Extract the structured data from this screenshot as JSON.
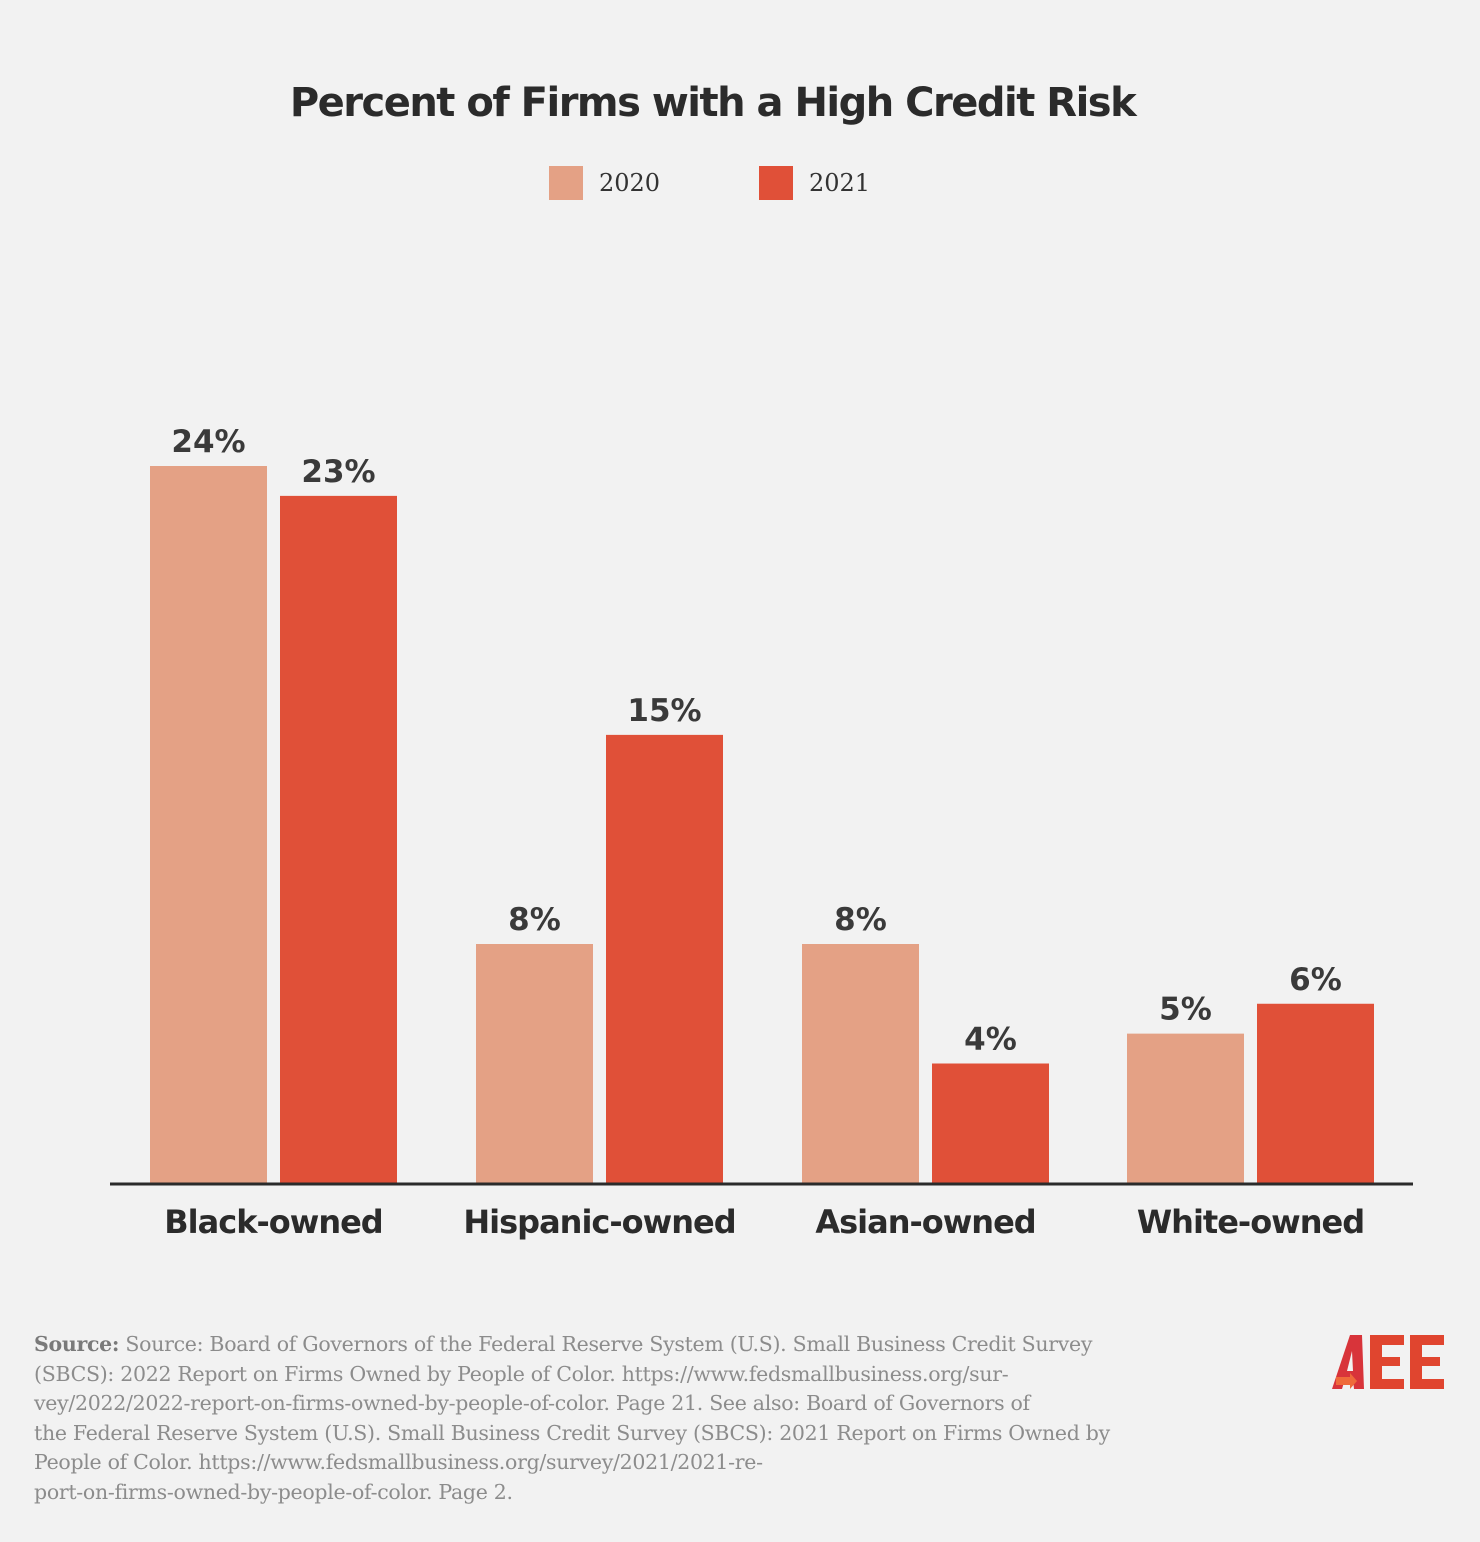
{
  "chart_data": {
    "type": "bar",
    "title": "Percent of Firms with a High Credit Risk",
    "categories": [
      "Black-owned",
      "Hispanic-owned",
      "Asian-owned",
      "White-owned"
    ],
    "series": [
      {
        "name": "2020",
        "color": "#e4a185",
        "values": [
          24,
          8,
          8,
          5
        ]
      },
      {
        "name": "2021",
        "color": "#e05038",
        "values": [
          23,
          15,
          4,
          6
        ]
      }
    ],
    "value_suffix": "%",
    "ylim": [
      0,
      24
    ],
    "grid": false,
    "legend": "top-center"
  },
  "source": {
    "label": "Source:",
    "lines": [
      "Source: Board of Governors of the Federal Reserve System (U.S). Small Business Credit Survey",
      "(SBCS): 2022 Report on Firms Owned by People of Color. https://www.fedsmallbusiness.org/sur-",
      "vey/2022/2022-report-on-firms-owned-by-people-of-color. Page 21. See also: Board of Governors of",
      "the Federal Reserve System (U.S). Small Business Credit Survey (SBCS): 2021 Report on Firms Owned by",
      "People of Color. https://www.fedsmallbusiness.org/survey/2021/2021-re-",
      "port-on-firms-owned-by-people-of-color. Page 2."
    ]
  },
  "logo": {
    "text": "AEE",
    "color": "#e0452f"
  }
}
